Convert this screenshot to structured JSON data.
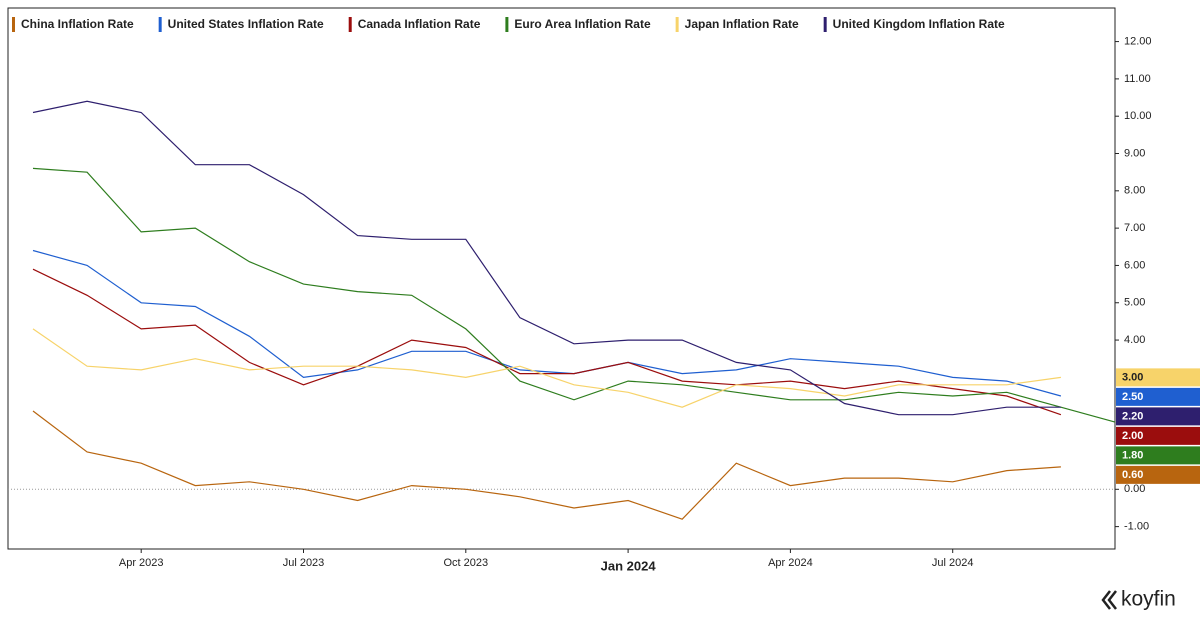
{
  "chart_data": {
    "type": "line",
    "x": [
      "Jan 2023",
      "Feb 2023",
      "Mar 2023",
      "Apr 2023",
      "May 2023",
      "Jun 2023",
      "Jul 2023",
      "Aug 2023",
      "Sep 2023",
      "Oct 2023",
      "Nov 2023",
      "Dec 2023",
      "Jan 2024",
      "Feb 2024",
      "Mar 2024",
      "Apr 2024",
      "May 2024",
      "Jun 2024",
      "Jul 2024",
      "Aug 2024",
      "Sep 2024"
    ],
    "xticks": [
      "Apr 2023",
      "Jul 2023",
      "Oct 2023",
      "Jan 2024",
      "Apr 2024",
      "Jul 2024"
    ],
    "ylim": [
      -1.6,
      12.9
    ],
    "yticks": [
      {
        "value": -1,
        "label": "-1.00"
      },
      {
        "value": 0,
        "label": "0.00"
      },
      {
        "value": 4,
        "label": "4.00"
      },
      {
        "value": 5,
        "label": "5.00"
      },
      {
        "value": 6,
        "label": "6.00"
      },
      {
        "value": 7,
        "label": "7.00"
      },
      {
        "value": 8,
        "label": "8.00"
      },
      {
        "value": 9,
        "label": "9.00"
      },
      {
        "value": 10,
        "label": "10.00"
      },
      {
        "value": 11,
        "label": "11.00"
      },
      {
        "value": 12,
        "label": "12.00"
      }
    ],
    "zero_line": true,
    "legend": "top",
    "series": [
      {
        "name": "China Inflation Rate",
        "color": "#b8650f",
        "values": [
          2.1,
          1.0,
          0.7,
          0.1,
          0.2,
          0.0,
          -0.3,
          0.1,
          0.0,
          -0.2,
          -0.5,
          -0.3,
          -0.8,
          0.7,
          0.1,
          0.3,
          0.3,
          0.2,
          0.5,
          0.6,
          null
        ],
        "value_labels": [
          null,
          null,
          null,
          null,
          null,
          null,
          null,
          null,
          null,
          null,
          null,
          null,
          null,
          null,
          null,
          null,
          null,
          null,
          null,
          "0.60",
          null
        ]
      },
      {
        "name": "United States Inflation Rate",
        "color": "#1f5fd0",
        "values": [
          6.4,
          6.0,
          5.0,
          4.9,
          4.1,
          3.0,
          3.2,
          3.7,
          3.7,
          3.2,
          3.1,
          3.4,
          3.1,
          3.2,
          3.5,
          3.4,
          3.3,
          3.0,
          2.9,
          2.5,
          null
        ],
        "value_labels": [
          null,
          null,
          null,
          null,
          null,
          null,
          null,
          null,
          null,
          null,
          null,
          null,
          null,
          null,
          null,
          null,
          null,
          null,
          null,
          "2.50",
          null
        ]
      },
      {
        "name": "Canada Inflation Rate",
        "color": "#9b0d0d",
        "values": [
          5.9,
          5.2,
          4.3,
          4.4,
          3.4,
          2.8,
          3.3,
          4.0,
          3.8,
          3.1,
          3.1,
          3.4,
          2.9,
          2.8,
          2.9,
          2.7,
          2.9,
          2.7,
          2.5,
          2.0,
          null
        ],
        "value_labels": [
          null,
          null,
          null,
          null,
          null,
          null,
          null,
          null,
          null,
          null,
          null,
          null,
          null,
          null,
          null,
          null,
          null,
          null,
          null,
          "2.00",
          null
        ]
      },
      {
        "name": "Euro Area Inflation Rate",
        "color": "#2e7d1e",
        "values": [
          8.6,
          8.5,
          6.9,
          7.0,
          6.1,
          5.5,
          5.3,
          5.2,
          4.3,
          2.9,
          2.4,
          2.9,
          2.8,
          2.6,
          2.4,
          2.4,
          2.6,
          2.5,
          2.6,
          2.2,
          1.8
        ],
        "value_labels": [
          null,
          null,
          null,
          null,
          null,
          null,
          null,
          null,
          null,
          null,
          null,
          null,
          null,
          null,
          null,
          null,
          null,
          null,
          null,
          null,
          "1.80"
        ]
      },
      {
        "name": "Japan Inflation Rate",
        "color": "#f7d36a",
        "values": [
          4.3,
          3.3,
          3.2,
          3.5,
          3.2,
          3.3,
          3.3,
          3.2,
          3.0,
          3.3,
          2.8,
          2.6,
          2.2,
          2.8,
          2.7,
          2.5,
          2.8,
          2.8,
          2.8,
          3.0,
          null
        ],
        "value_labels": [
          null,
          null,
          null,
          null,
          null,
          null,
          null,
          null,
          null,
          null,
          null,
          null,
          null,
          null,
          null,
          null,
          null,
          null,
          null,
          "3.00",
          null
        ]
      },
      {
        "name": "United Kingdom Inflation Rate",
        "color": "#2e1f6e",
        "values": [
          10.1,
          10.4,
          10.1,
          8.7,
          8.7,
          7.9,
          6.8,
          6.7,
          6.7,
          4.6,
          3.9,
          4.0,
          4.0,
          3.4,
          3.2,
          2.3,
          2.0,
          2.0,
          2.2,
          2.2,
          null
        ],
        "value_labels": [
          null,
          null,
          null,
          null,
          null,
          null,
          null,
          null,
          null,
          null,
          null,
          null,
          null,
          null,
          null,
          null,
          null,
          null,
          null,
          "2.20",
          null
        ]
      }
    ],
    "branding": "koyfin"
  }
}
